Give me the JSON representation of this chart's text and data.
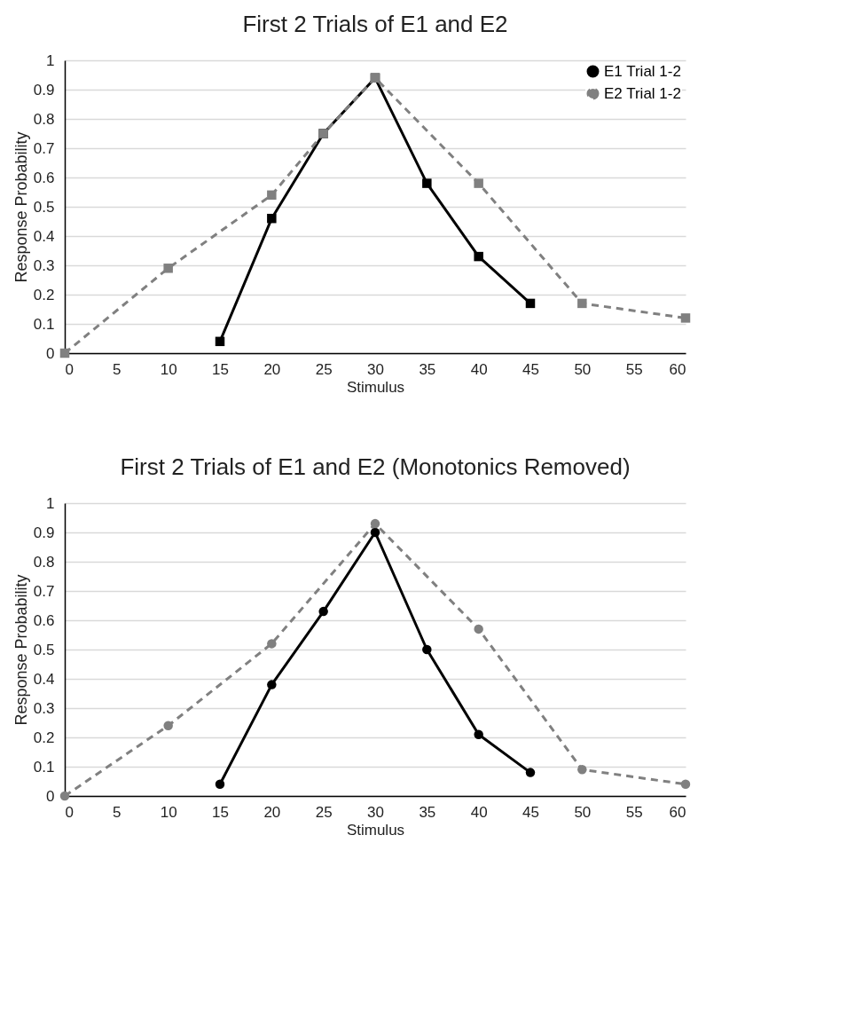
{
  "chart_data": [
    {
      "type": "line",
      "title": "First 2 Trials of E1 and E2",
      "xlabel": "Stimulus",
      "ylabel": "Response Probability",
      "xlim": [
        0,
        60
      ],
      "xticks": [
        0,
        5,
        10,
        15,
        20,
        25,
        30,
        35,
        40,
        45,
        50,
        55,
        60
      ],
      "ylim": [
        0,
        1
      ],
      "yticks": [
        0,
        0.1,
        0.2,
        0.3,
        0.4,
        0.5,
        0.6,
        0.7,
        0.8,
        0.9,
        1
      ],
      "grid": "y",
      "legend": "top right",
      "marker": "square",
      "series": [
        {
          "name": "E1 Trial 1-2",
          "color": "#000000",
          "line_style": "solid",
          "x": [
            15,
            20,
            25,
            30,
            35,
            40,
            45
          ],
          "values": [
            0.04,
            0.46,
            0.75,
            0.94,
            0.58,
            0.33,
            0.17
          ]
        },
        {
          "name": "E2 Trial 1-2",
          "color": "#808080",
          "line_style": "dashed",
          "x": [
            0,
            10,
            20,
            25,
            30,
            40,
            50,
            60
          ],
          "values": [
            0,
            0.29,
            0.54,
            0.75,
            0.94,
            0.58,
            0.17,
            0.12
          ]
        }
      ]
    },
    {
      "type": "line",
      "title": "First 2 Trials of E1 and E2 (Monotonics Removed)",
      "xlabel": "Stimulus",
      "ylabel": "Response Probability",
      "xlim": [
        0,
        60
      ],
      "xticks": [
        0,
        5,
        10,
        15,
        20,
        25,
        30,
        35,
        40,
        45,
        50,
        55,
        60
      ],
      "ylim": [
        0,
        1
      ],
      "yticks": [
        0,
        0.1,
        0.2,
        0.3,
        0.4,
        0.5,
        0.6,
        0.7,
        0.8,
        0.9,
        1
      ],
      "grid": "y",
      "legend": "top right",
      "marker": "circle",
      "series": [
        {
          "name": "E1 Trial 1-2",
          "color": "#000000",
          "line_style": "solid",
          "x": [
            15,
            20,
            25,
            30,
            35,
            40,
            45
          ],
          "values": [
            0.04,
            0.38,
            0.63,
            0.9,
            0.5,
            0.21,
            0.08
          ]
        },
        {
          "name": "E2 Trial 1-2",
          "color": "#808080",
          "line_style": "dashed",
          "x": [
            0,
            10,
            20,
            30,
            40,
            50,
            60
          ],
          "values": [
            0,
            0.24,
            0.52,
            0.93,
            0.57,
            0.09,
            0.04
          ]
        }
      ]
    }
  ]
}
